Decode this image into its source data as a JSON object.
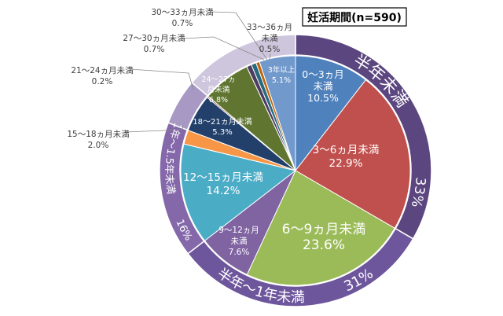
{
  "chart_data": {
    "type": "pie",
    "title": "妊活期間(n=590)",
    "unit": "%",
    "inner": {
      "categories": [
        "0～3ヵ月未満",
        "3～6ヵ月未満",
        "6～9ヵ月未満",
        "9～12ヵ月未満",
        "12～15ヵ月未満",
        "15～18ヵ月未満",
        "18～21ヵ月未満",
        "21～24ヵ月未満",
        "24～27ヵ月未満",
        "27～30ヵ月未満",
        "30～33ヵ月未満",
        "33～36ヵ月未満",
        "3年以上"
      ],
      "values": [
        10.5,
        22.9,
        23.6,
        7.6,
        14.2,
        2.0,
        5.3,
        0.2,
        6.8,
        0.7,
        0.7,
        0.5,
        5.1
      ],
      "colors": [
        "#4f81bd",
        "#c0504d",
        "#9bbb59",
        "#8064a2",
        "#4bacc6",
        "#f79646",
        "#22406a",
        "#7a2e2c",
        "#5f7530",
        "#4d3b62",
        "#276a7c",
        "#c0650f",
        "#7299cc"
      ],
      "labels": [
        {
          "lines": [
            "0～3ヵ月",
            "未満",
            "10.5%"
          ]
        },
        {
          "lines": [
            "3～6ヵ月未満",
            "22.9%"
          ]
        },
        {
          "lines": [
            "6～9ヵ月未満",
            "23.6%"
          ]
        },
        {
          "lines": [
            "9～12ヵ月",
            "未満",
            "7.6%"
          ]
        },
        {
          "lines": [
            "12～15ヵ月未満",
            "14.2%"
          ]
        },
        {
          "lines": [
            "15～18ヵ月未満",
            "2.0%"
          ]
        },
        {
          "lines": [
            "18～21ヵ月未満",
            "5.3%"
          ]
        },
        {
          "lines": [
            "21～24ヵ月未満",
            "0.2%"
          ]
        },
        {
          "lines": [
            "24～27ヵ",
            "月未満",
            "6.8%"
          ]
        },
        {
          "lines": [
            "27～30ヵ月未満",
            "0.7%"
          ]
        },
        {
          "lines": [
            "30～33ヵ月未満",
            "0.7%"
          ]
        },
        {
          "lines": [
            "33～36ヵ月",
            "未満",
            "0.5%"
          ]
        },
        {
          "lines": [
            "3年以上",
            "5.1%"
          ]
        }
      ]
    },
    "outer": {
      "values": [
        33.4,
        31.2,
        16.2,
        5.5,
        13.8
      ],
      "colors": [
        "#5b467f",
        "#6e569c",
        "#8468aa",
        "#a898c4",
        "#cec6dd"
      ],
      "labels": [
        {
          "name": "半年未満",
          "pct": "33%"
        },
        {
          "name": "半年～1年未満",
          "pct": "31%"
        },
        {
          "name": "1年～1.5年未満",
          "pct": "16%"
        },
        null,
        null
      ]
    }
  }
}
